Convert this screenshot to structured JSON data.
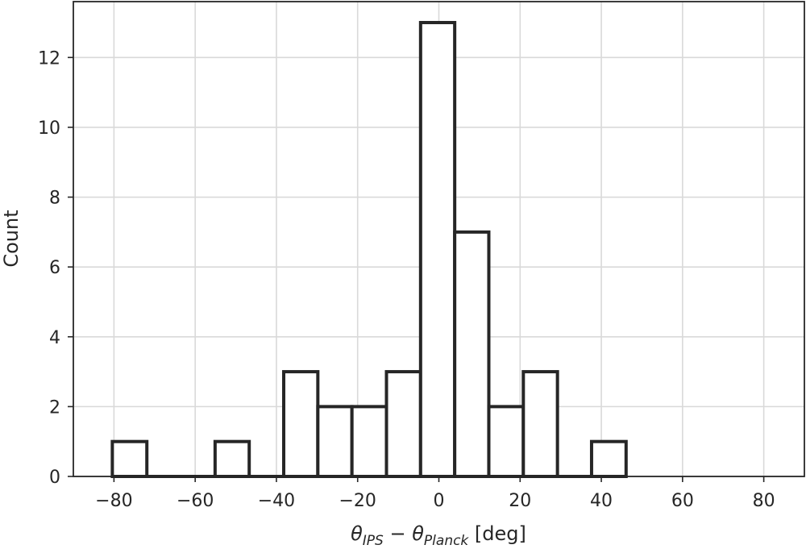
{
  "chart_data": {
    "type": "bar",
    "subtype": "histogram",
    "xlabel": "θ_IPS − θ_Planck [deg]",
    "xlabel_parts": {
      "theta": "θ",
      "sub1": "IPS",
      "minus": " − ",
      "sub2": "Planck",
      "unit": " [deg]"
    },
    "ylabel": "Count",
    "xlim": [
      -90,
      90
    ],
    "ylim": [
      0,
      13.6
    ],
    "xticks": [
      -80,
      -60,
      -40,
      -20,
      0,
      20,
      40,
      60,
      80
    ],
    "xtick_labels": [
      "−80",
      "−60",
      "−40",
      "−20",
      "0",
      "20",
      "40",
      "60",
      "80"
    ],
    "yticks": [
      0,
      2,
      4,
      6,
      8,
      10,
      12
    ],
    "ytick_labels": [
      "0",
      "2",
      "4",
      "6",
      "8",
      "10",
      "12"
    ],
    "grid": true,
    "bin_edges": [
      -80.4,
      -71.9,
      -63.5,
      -55.1,
      -46.7,
      -38.2,
      -29.8,
      -21.4,
      -12.9,
      -4.5,
      3.9,
      12.3,
      20.8,
      29.2,
      37.6,
      46.1
    ],
    "counts": [
      1,
      0,
      0,
      1,
      0,
      3,
      2,
      2,
      3,
      13,
      7,
      2,
      3,
      0,
      1
    ],
    "bar_fill": "#ffffff",
    "bar_edge_color": "#262626",
    "grid_color": "#d9d9d9"
  }
}
